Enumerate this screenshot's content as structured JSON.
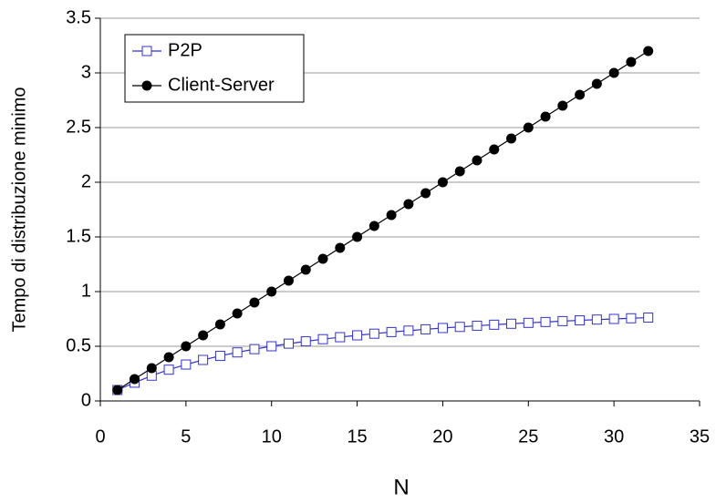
{
  "chart_data": {
    "type": "line",
    "xlabel": "N",
    "ylabel": "Tempo di distribuzione minimo",
    "x": [
      1,
      2,
      3,
      4,
      5,
      6,
      7,
      8,
      9,
      10,
      11,
      12,
      13,
      14,
      15,
      16,
      17,
      18,
      19,
      20,
      21,
      22,
      23,
      24,
      25,
      26,
      27,
      28,
      29,
      30,
      31,
      32
    ],
    "series": [
      {
        "name": "P2P",
        "color": "#3333cc",
        "marker": "square",
        "values": [
          0.1,
          0.167,
          0.231,
          0.286,
          0.333,
          0.375,
          0.412,
          0.444,
          0.474,
          0.5,
          0.524,
          0.545,
          0.565,
          0.583,
          0.6,
          0.615,
          0.63,
          0.643,
          0.655,
          0.667,
          0.677,
          0.688,
          0.697,
          0.706,
          0.714,
          0.722,
          0.73,
          0.737,
          0.744,
          0.75,
          0.756,
          0.762
        ]
      },
      {
        "name": "Client-Server",
        "color": "#000000",
        "marker": "circle",
        "values": [
          0.1,
          0.2,
          0.3,
          0.4,
          0.5,
          0.6,
          0.7,
          0.8,
          0.9,
          1.0,
          1.1,
          1.2,
          1.3,
          1.4,
          1.5,
          1.6,
          1.7,
          1.8,
          1.9,
          2.0,
          2.1,
          2.2,
          2.3,
          2.4,
          2.5,
          2.6,
          2.7,
          2.8,
          2.9,
          3.0,
          3.1,
          3.2
        ]
      }
    ],
    "xlim": [
      0,
      35
    ],
    "xticks": [
      0,
      5,
      10,
      15,
      20,
      25,
      30,
      35
    ],
    "ylim": [
      0,
      3.5
    ],
    "yticks": [
      0,
      0.5,
      1,
      1.5,
      2,
      2.5,
      3,
      3.5
    ],
    "grid": true,
    "legend": "upper left"
  }
}
